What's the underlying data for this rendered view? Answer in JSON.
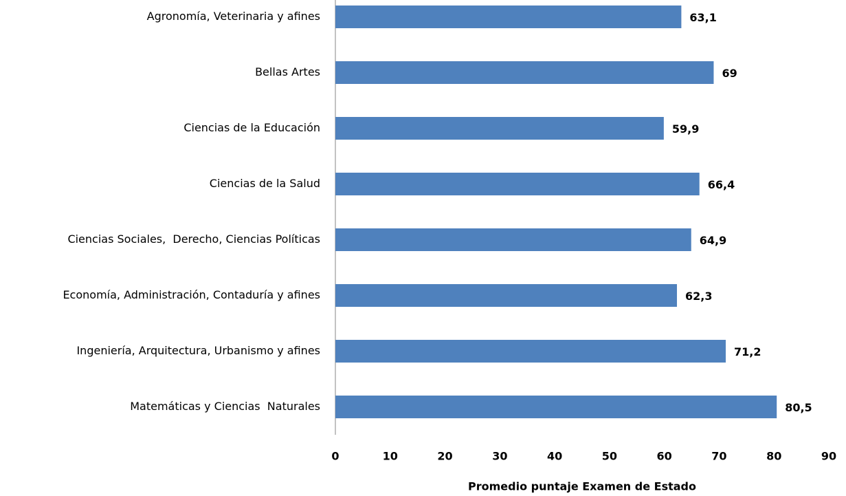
{
  "chart_data": {
    "type": "barh",
    "xlabel": "Promedio puntaje Examen de Estado",
    "categories": [
      "Agronomía, Veterinaria y afines",
      "Bellas Artes",
      "Ciencias de la Educación",
      "Ciencias de la Salud",
      "Ciencias Sociales,  Derecho, Ciencias Políticas",
      "Economía, Administración, Contaduría y afines",
      "Ingeniería, Arquitectura, Urbanismo y afines",
      "Matemáticas y Ciencias  Naturales"
    ],
    "values": [
      63.1,
      69,
      59.9,
      66.4,
      64.9,
      62.3,
      71.2,
      80.5
    ],
    "value_labels": [
      "63,1",
      "69",
      "59,9",
      "66,4",
      "64,9",
      "62,3",
      "71,2",
      "80,5"
    ],
    "color": "#4f81bd",
    "xlim": [
      0,
      90
    ],
    "xticks": [
      0,
      10,
      20,
      30,
      40,
      50,
      60,
      70,
      80,
      90
    ],
    "grid": false
  }
}
